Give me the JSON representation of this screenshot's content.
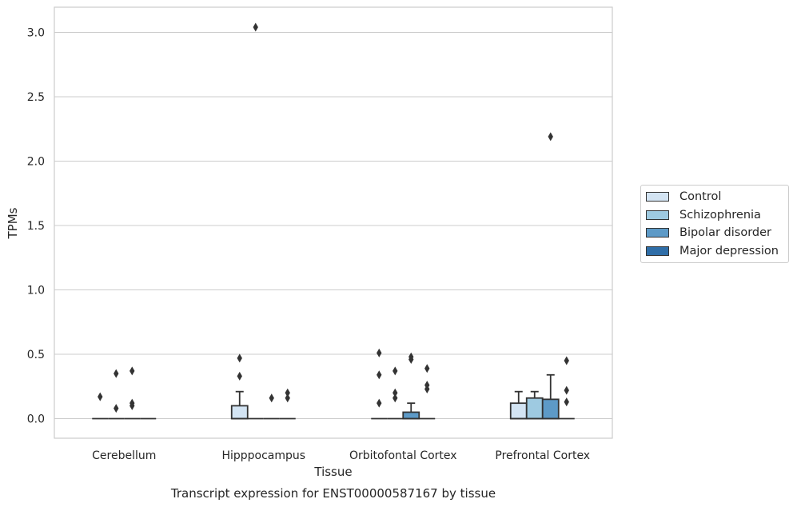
{
  "chart_data": {
    "type": "box",
    "title": "Transcript expression for ENST00000587167 by tissue",
    "xlabel": "Tissue",
    "ylabel": "TPMs",
    "ylim": [
      -0.15,
      3.2
    ],
    "yticks": [
      0.0,
      0.5,
      1.0,
      1.5,
      2.0,
      2.5,
      3.0
    ],
    "ytick_labels": [
      "0.0",
      "0.5",
      "1.0",
      "1.5",
      "2.0",
      "2.5",
      "3.0"
    ],
    "grid": "horizontal",
    "legend_position": "right",
    "categories": [
      "Cerebellum",
      "Hipppocampus",
      "Orbitofontal Cortex",
      "Prefrontal Cortex"
    ],
    "series": [
      {
        "name": "Control",
        "color": "#d3e4f3",
        "boxes": [
          {
            "q1": 0,
            "median": 0,
            "q3": 0,
            "whislo": 0,
            "whishi": 0,
            "fliers": [
              0.17
            ]
          },
          {
            "q1": 0,
            "median": 0,
            "q3": 0.1,
            "whislo": 0,
            "whishi": 0.21,
            "fliers": [
              0.33,
              0.47
            ]
          },
          {
            "q1": 0,
            "median": 0,
            "q3": 0,
            "whislo": 0,
            "whishi": 0,
            "fliers": [
              0.12,
              0.34,
              0.51
            ]
          },
          {
            "q1": 0,
            "median": 0,
            "q3": 0.12,
            "whislo": 0,
            "whishi": 0.21,
            "fliers": []
          }
        ]
      },
      {
        "name": "Schizophrenia",
        "color": "#9ecae1",
        "boxes": [
          {
            "q1": 0,
            "median": 0,
            "q3": 0,
            "whislo": 0,
            "whishi": 0,
            "fliers": [
              0.08,
              0.35
            ]
          },
          {
            "q1": 0,
            "median": 0,
            "q3": 0,
            "whislo": 0,
            "whishi": 0,
            "fliers": [
              3.04
            ]
          },
          {
            "q1": 0,
            "median": 0,
            "q3": 0,
            "whislo": 0,
            "whishi": 0,
            "fliers": [
              0.16,
              0.2,
              0.37
            ]
          },
          {
            "q1": 0,
            "median": 0,
            "q3": 0.16,
            "whislo": 0,
            "whishi": 0.21,
            "fliers": []
          }
        ]
      },
      {
        "name": "Bipolar disorder",
        "color": "#5d9ac7",
        "boxes": [
          {
            "q1": 0,
            "median": 0,
            "q3": 0,
            "whislo": 0,
            "whishi": 0,
            "fliers": [
              0.1,
              0.12,
              0.37
            ]
          },
          {
            "q1": 0,
            "median": 0,
            "q3": 0,
            "whislo": 0,
            "whishi": 0,
            "fliers": [
              0.16
            ]
          },
          {
            "q1": 0,
            "median": 0,
            "q3": 0.05,
            "whislo": 0,
            "whishi": 0.12,
            "fliers": [
              0.46,
              0.48
            ]
          },
          {
            "q1": 0,
            "median": 0,
            "q3": 0.15,
            "whislo": 0,
            "whishi": 0.34,
            "fliers": [
              2.19
            ]
          }
        ]
      },
      {
        "name": "Major depression",
        "color": "#2f6ea8",
        "boxes": [
          {
            "q1": 0,
            "median": 0,
            "q3": 0,
            "whislo": 0,
            "whishi": 0,
            "fliers": []
          },
          {
            "q1": 0,
            "median": 0,
            "q3": 0,
            "whislo": 0,
            "whishi": 0,
            "fliers": [
              0.16,
              0.2
            ]
          },
          {
            "q1": 0,
            "median": 0,
            "q3": 0,
            "whislo": 0,
            "whishi": 0,
            "fliers": [
              0.23,
              0.26,
              0.39
            ]
          },
          {
            "q1": 0,
            "median": 0,
            "q3": 0,
            "whislo": 0,
            "whishi": 0,
            "fliers": [
              0.13,
              0.22,
              0.45
            ]
          }
        ]
      }
    ]
  },
  "legend": {
    "items": [
      {
        "label": "Control",
        "color": "#d3e4f3"
      },
      {
        "label": "Schizophrenia",
        "color": "#9ecae1"
      },
      {
        "label": "Bipolar disorder",
        "color": "#5d9ac7"
      },
      {
        "label": "Major depression",
        "color": "#2f6ea8"
      }
    ]
  },
  "colors": {
    "grid": "#cccccc",
    "frame": "#cccccc",
    "edge": "#333333",
    "text": "#262626"
  }
}
